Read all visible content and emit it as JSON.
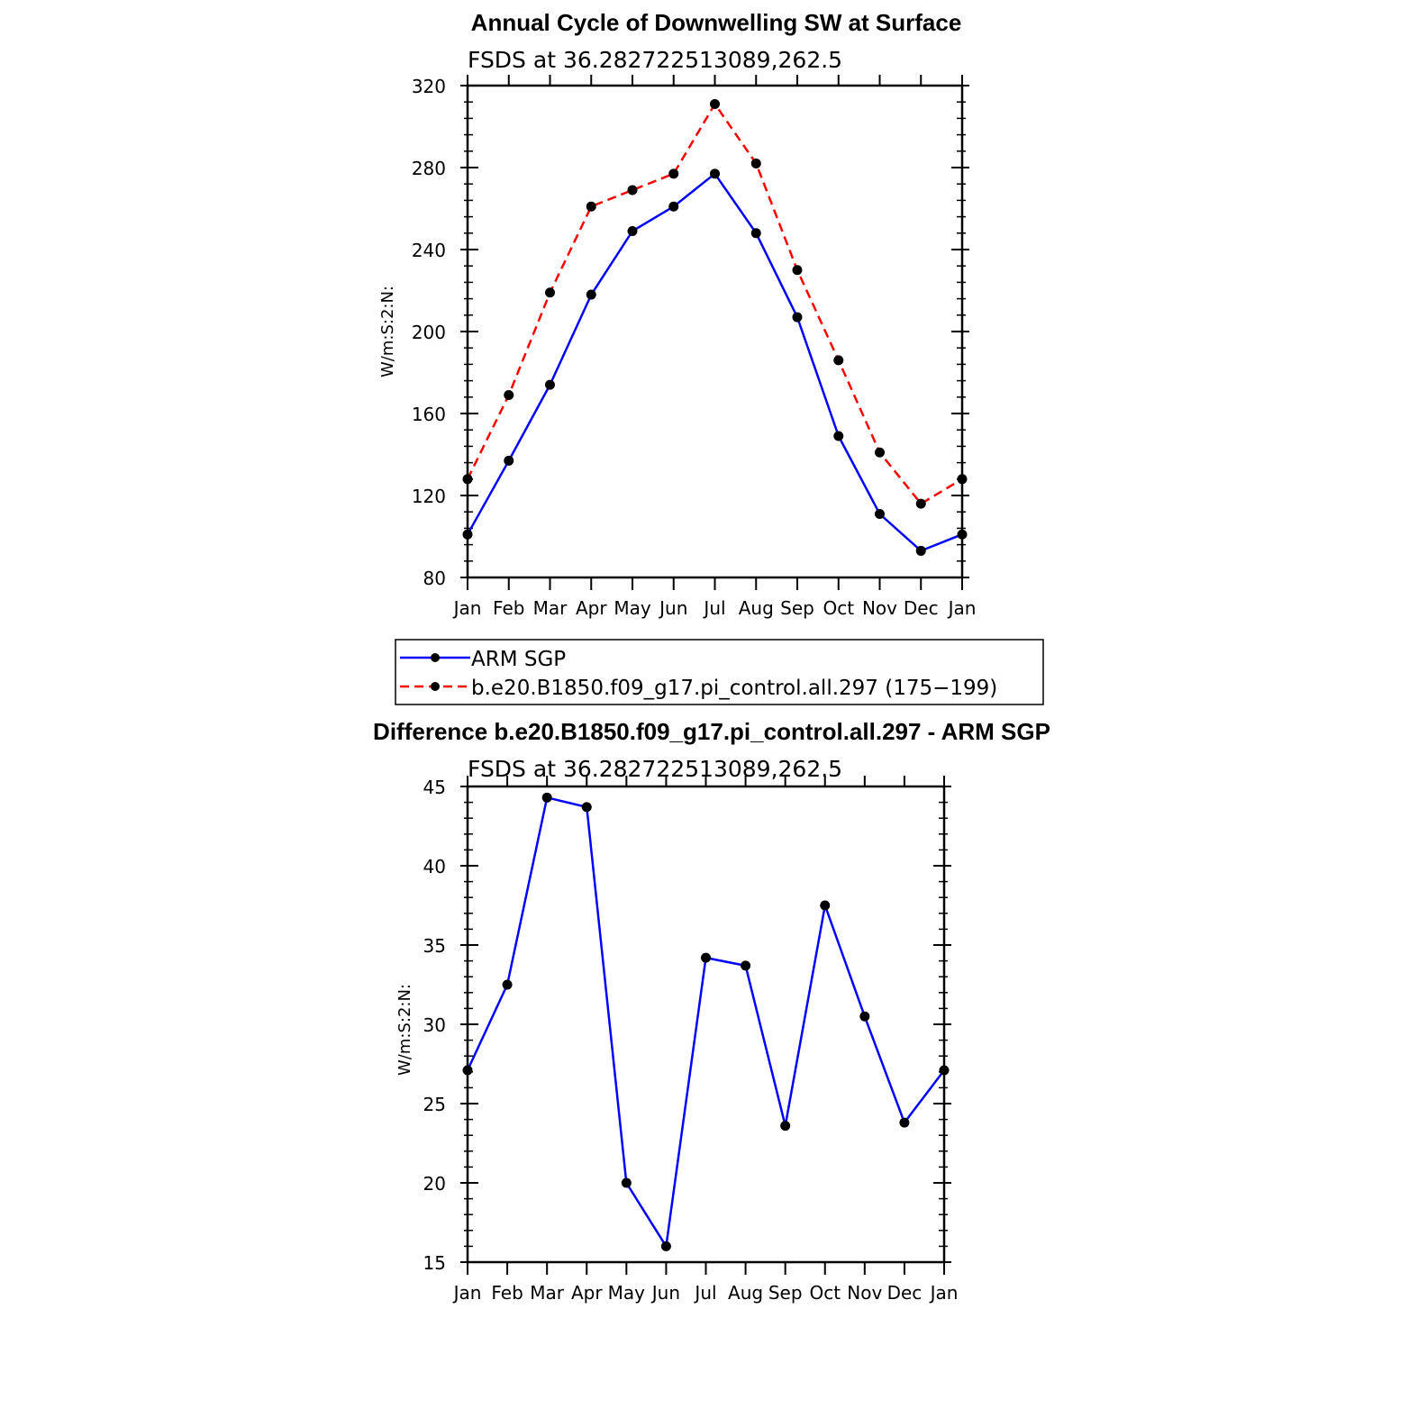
{
  "chart_data": [
    {
      "type": "line",
      "title": "Annual Cycle of Downwelling SW at Surface",
      "subtitle": "FSDS at 36.282722513089,262.5",
      "ylabel": "W/m:S:2:N:",
      "ylim": [
        80,
        320
      ],
      "yticks": [
        "80",
        "120",
        "160",
        "200",
        "240",
        "280",
        "320"
      ],
      "categories": [
        "Jan",
        "Feb",
        "Mar",
        "Apr",
        "May",
        "Jun",
        "Jul",
        "Aug",
        "Sep",
        "Oct",
        "Nov",
        "Dec",
        "Jan"
      ],
      "series": [
        {
          "name": "ARM SGP",
          "color": "#0000ff",
          "dash": "solid",
          "values": [
            101,
            137,
            174,
            218,
            249,
            261,
            277,
            248,
            207,
            149,
            111,
            93,
            101
          ]
        },
        {
          "name": "b.e20.B1850.f09_g17.pi_control.all.297 (175−199)",
          "color": "#ff0000",
          "dash": "dashed",
          "values": [
            128,
            169,
            219,
            261,
            269,
            277,
            311,
            282,
            230,
            186,
            141,
            116,
            128
          ]
        }
      ],
      "legend": "below"
    },
    {
      "type": "line",
      "title": "Difference b.e20.B1850.f09_g17.pi_control.all.297 - ARM SGP",
      "subtitle": "FSDS at 36.282722513089,262.5",
      "ylabel": "W/m:S:2:N:",
      "ylim": [
        15,
        45
      ],
      "yticks": [
        "15",
        "20",
        "25",
        "30",
        "35",
        "40",
        "45"
      ],
      "categories": [
        "Jan",
        "Feb",
        "Mar",
        "Apr",
        "May",
        "Jun",
        "Jul",
        "Aug",
        "Sep",
        "Oct",
        "Nov",
        "Dec",
        "Jan"
      ],
      "series": [
        {
          "color": "#0000ff",
          "dash": "solid",
          "values": [
            27.1,
            32.5,
            44.3,
            43.7,
            20.0,
            16.0,
            34.2,
            33.7,
            23.6,
            37.5,
            30.5,
            23.8,
            27.1
          ]
        }
      ]
    }
  ]
}
